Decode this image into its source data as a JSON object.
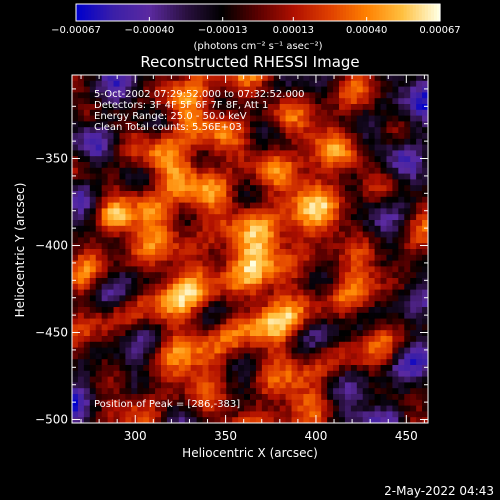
{
  "chart_data": {
    "type": "heatmap",
    "title": "Reconstructed RHESSI Image",
    "xlabel": "Heliocentric X (arcsec)",
    "ylabel": "Heliocentric Y (arcsec)",
    "xlim": [
      265,
      462
    ],
    "ylim": [
      -502,
      -302
    ],
    "x_ticks": [
      300,
      350,
      400,
      450
    ],
    "y_ticks": [
      -350,
      -400,
      -450,
      -500
    ],
    "x_tick_labels": [
      "300",
      "350",
      "400",
      "450"
    ],
    "y_tick_labels": [
      "−350",
      "−400",
      "−450",
      "−500"
    ],
    "colorbar": {
      "range": [
        -0.00067,
        0.00067
      ],
      "ticks": [
        -0.00067,
        -0.0004,
        -0.00013,
        0.00013,
        0.0004,
        0.00067
      ],
      "tick_labels": [
        "−0.00067",
        "−0.00040",
        "−0.00013",
        "0.00013",
        "0.00040",
        "0.00067"
      ],
      "unit_label": "(photons cm⁻² s⁻¹ asec⁻²)"
    },
    "annotations": [
      "5-Oct-2002 07:29:52.000 to 07:32:52.000",
      "Detectors: 3F 4F 5F 6F 7F 8F, Att 1",
      "Energy Range: 25.0 - 50.0 keV",
      "Clean     Total counts: 5.56E+03"
    ],
    "peak_label": "Position of Peak = [286,-383]",
    "peak": [
      286,
      -383
    ],
    "colormap": [
      "#0000cc",
      "#3b1fa8",
      "#5b2aa0",
      "#2a1040",
      "#000000",
      "#5a0000",
      "#b01000",
      "#e04000",
      "#ff8000",
      "#ffc040",
      "#ffffe0"
    ],
    "grid_size": 60
  },
  "footer": {
    "timestamp": "2-May-2022 04:43"
  }
}
